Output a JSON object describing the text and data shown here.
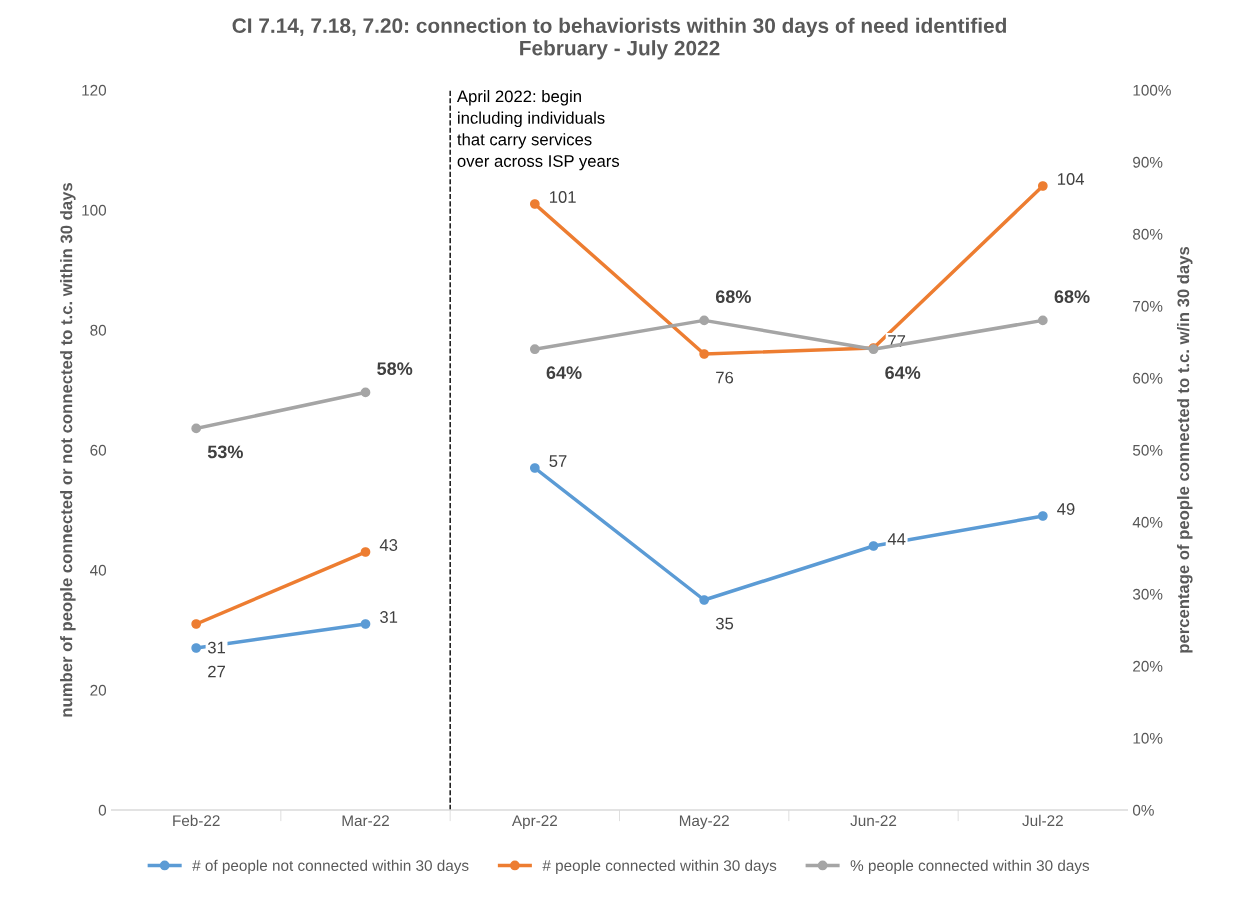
{
  "chart_data": {
    "type": "line",
    "title": "CI 7.14, 7.18, 7.20: connection to behaviorists within 30 days of need identified\nFebruary - July 2022",
    "categories": [
      "Feb-22",
      "Mar-22",
      "Apr-22",
      "May-22",
      "Jun-22",
      "Jul-22"
    ],
    "ylabel": "number of people connected or not connected to t.c. within 30 days",
    "y2label": "percentage of people connected to t.c. w/in 30 days",
    "ylim": [
      0,
      120
    ],
    "yticks": [
      0,
      20,
      40,
      60,
      80,
      100,
      120
    ],
    "y2lim": [
      0,
      100
    ],
    "y2ticks": [
      {
        "value": 0,
        "label": "0%"
      },
      {
        "value": 10,
        "label": "10%"
      },
      {
        "value": 20,
        "label": "20%"
      },
      {
        "value": 30,
        "label": "30%"
      },
      {
        "value": 40,
        "label": "40%"
      },
      {
        "value": 50,
        "label": "50%"
      },
      {
        "value": 60,
        "label": "60%"
      },
      {
        "value": 70,
        "label": "70%"
      },
      {
        "value": 80,
        "label": "80%"
      },
      {
        "value": 90,
        "label": "90%"
      },
      {
        "value": 100,
        "label": "100%"
      }
    ],
    "series": [
      {
        "name": "# of people not connected within 30 days",
        "color": "#5b9bd5",
        "values": [
          27,
          31,
          null,
          null,
          null,
          null
        ],
        "value_labels": [
          "27",
          "31",
          null,
          null,
          null,
          null
        ]
      },
      {
        "name": "# people connected within 30 days",
        "color": "#ed7d31",
        "values": [
          31,
          43,
          null,
          null,
          null,
          null
        ],
        "value_labels": [
          "31",
          "43",
          null,
          null,
          null,
          null
        ]
      },
      {
        "name": "% people connected within 30 days",
        "color": "#a5a5a5",
        "axis": "y2",
        "values": [
          53,
          58,
          null,
          null,
          null,
          null
        ],
        "value_labels": [
          "53%",
          "58%",
          null,
          null,
          null,
          null
        ]
      },
      {
        "color": "#5b9bd5",
        "values": [
          null,
          null,
          57,
          35,
          44,
          49
        ],
        "value_labels": [
          null,
          null,
          "57",
          "35",
          "44",
          "49"
        ]
      },
      {
        "color": "#ed7d31",
        "values": [
          null,
          null,
          101,
          76,
          77,
          104
        ],
        "value_labels": [
          null,
          null,
          "101",
          "76",
          "77",
          "104"
        ]
      },
      {
        "color": "#a5a5a5",
        "axis": "y2",
        "values": [
          null,
          null,
          64,
          68,
          64,
          68
        ],
        "value_labels": [
          null,
          null,
          "64%",
          "68%",
          "64%",
          "68%"
        ]
      }
    ],
    "annotations": [
      "April 2022: begin\nincluding individuals\nthat carry services\nover across ISP years"
    ],
    "marker": "circle",
    "line_style": "solid",
    "grid": false,
    "legend": "bottom"
  }
}
